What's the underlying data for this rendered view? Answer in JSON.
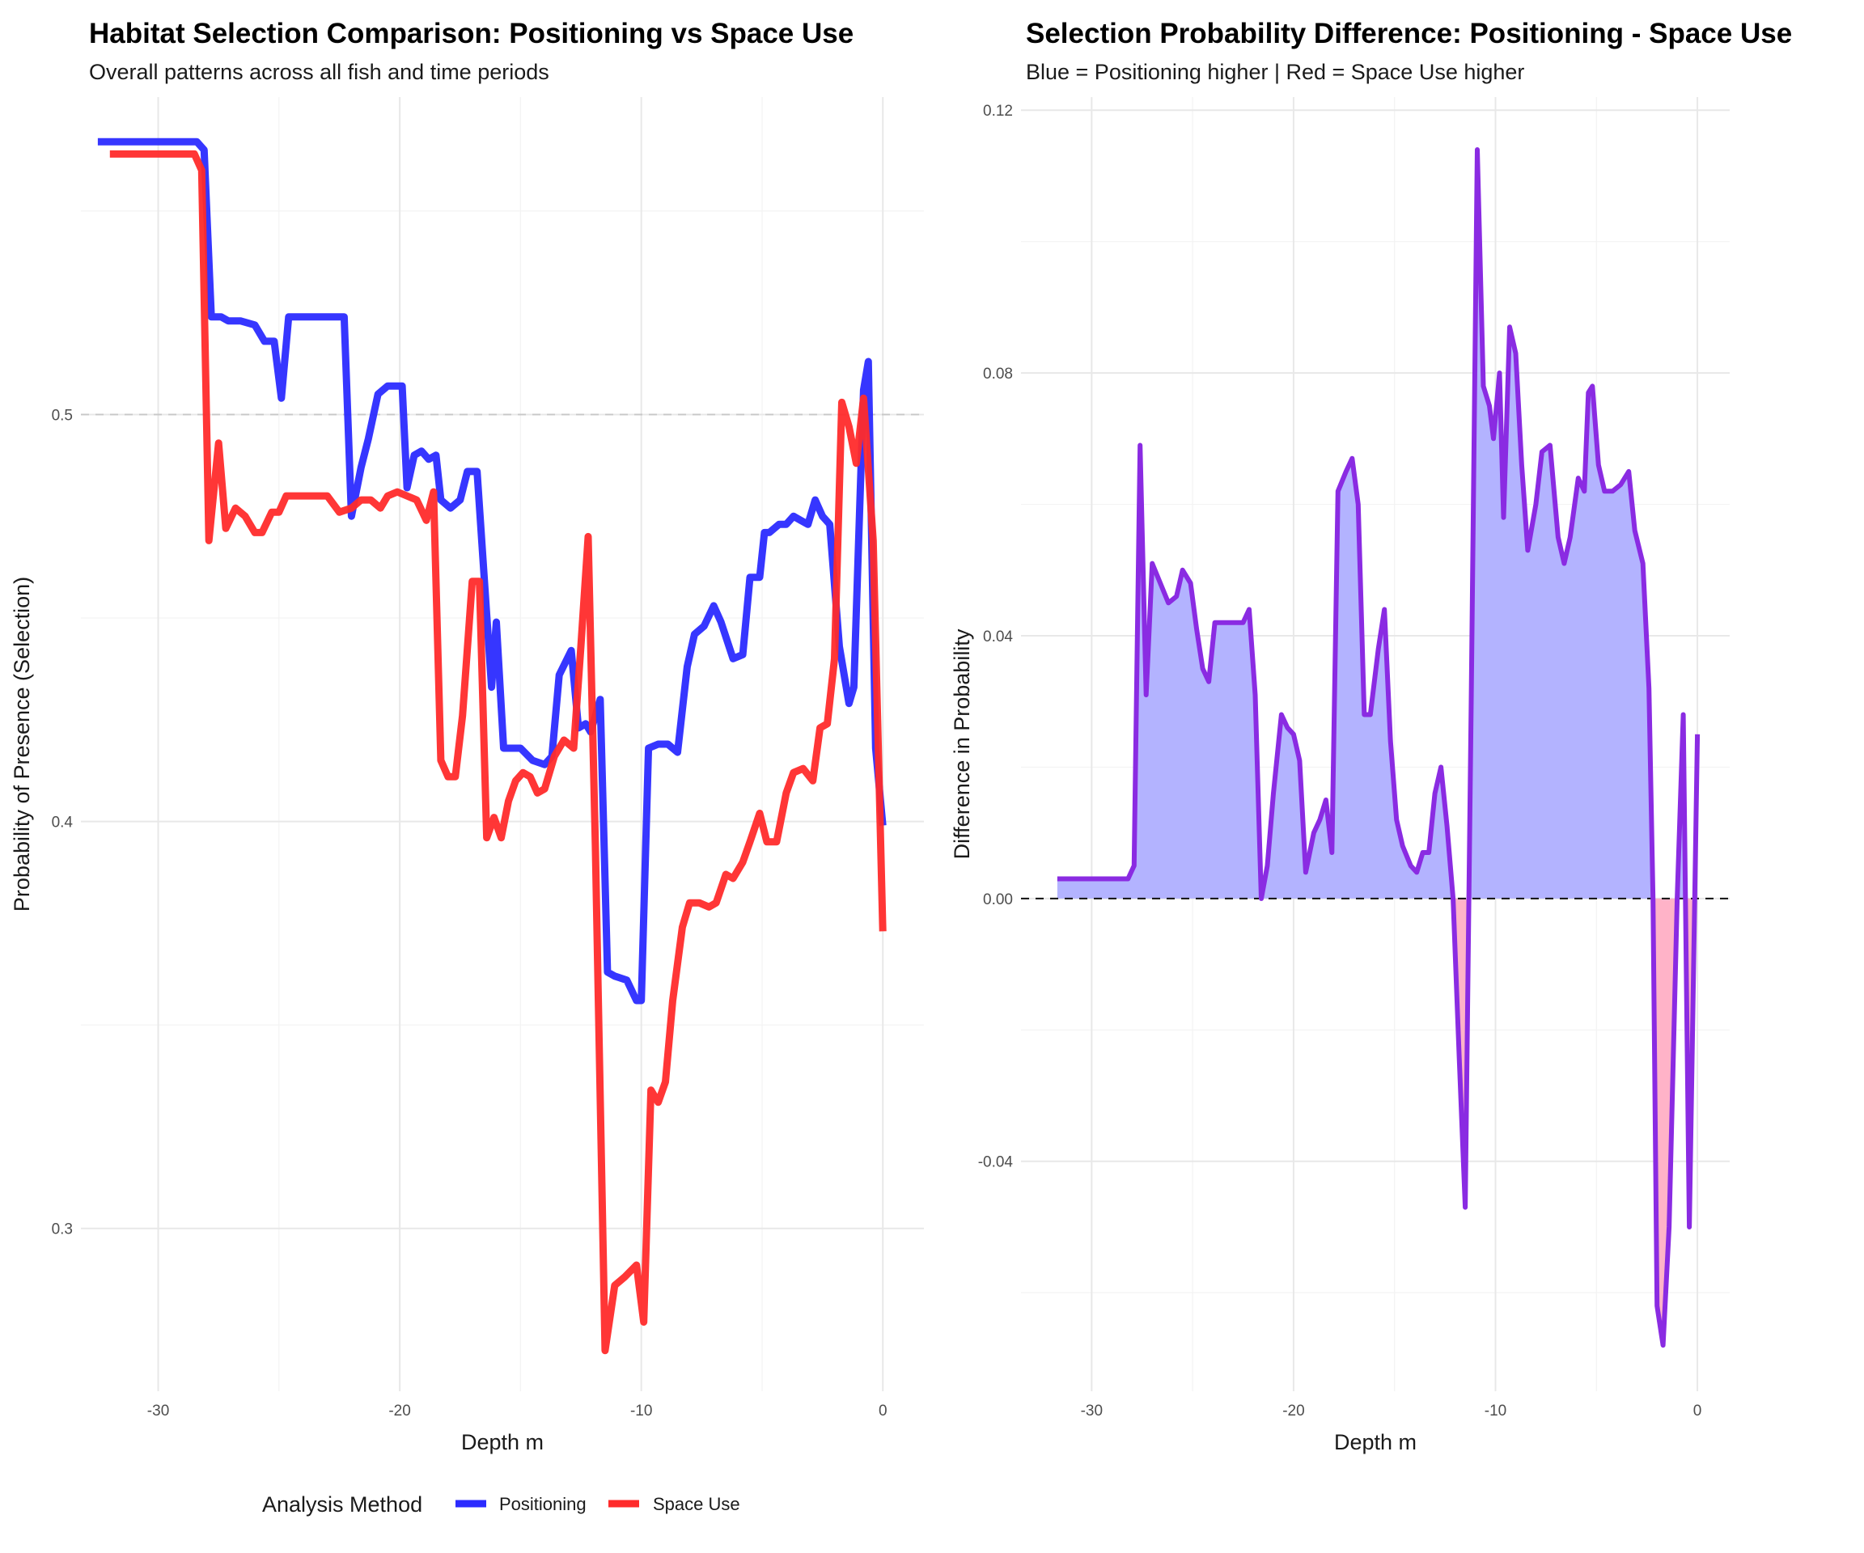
{
  "chart_data": [
    {
      "type": "line",
      "title": "Habitat Selection Comparison: Positioning vs Space Use",
      "subtitle": "Overall patterns across all fish and time periods",
      "xlabel": "Depth m",
      "ylabel": "Probability of Presence (Selection)",
      "xlim": [
        -33.2,
        1.7
      ],
      "ylim": [
        0.26,
        0.578
      ],
      "xticks": [
        -30,
        -20,
        -10,
        0
      ],
      "xtick_labels": [
        "-30",
        "-20",
        "-10",
        "0"
      ],
      "yticks": [
        0.3,
        0.4,
        0.5
      ],
      "ytick_labels": [
        "0.3",
        "0.4",
        "0.5"
      ],
      "reference_line": 0.5,
      "legend": {
        "title": "Analysis Method",
        "position": "bottom",
        "entries": [
          "Positioning",
          "Space Use"
        ]
      },
      "series": [
        {
          "name": "Positioning",
          "color": "#2b2bff",
          "x": [
            -32.5,
            -28.4,
            -28.1,
            -27.8,
            -27.4,
            -27.1,
            -26.6,
            -26.0,
            -25.6,
            -25.2,
            -24.9,
            -24.6,
            -24.3,
            -23.8,
            -23.0,
            -22.3,
            -22.0,
            -21.6,
            -21.3,
            -20.9,
            -20.5,
            -19.9,
            -19.7,
            -19.4,
            -19.1,
            -18.8,
            -18.5,
            -18.3,
            -17.9,
            -17.5,
            -17.2,
            -16.8,
            -16.2,
            -16.0,
            -15.7,
            -15.4,
            -15.0,
            -14.5,
            -14.0,
            -13.7,
            -13.4,
            -12.9,
            -12.6,
            -12.3,
            -12.1,
            -11.7,
            -11.4,
            -11.1,
            -10.6,
            -10.2,
            -10.0,
            -9.7,
            -9.3,
            -8.9,
            -8.5,
            -8.1,
            -7.8,
            -7.4,
            -7.0,
            -6.7,
            -6.2,
            -5.8,
            -5.5,
            -5.1,
            -4.9,
            -4.7,
            -4.3,
            -4.0,
            -3.7,
            -3.4,
            -3.1,
            -2.8,
            -2.5,
            -2.2,
            -1.8,
            -1.4,
            -1.2,
            -0.8,
            -0.6,
            -0.3,
            0.0
          ],
          "values": [
            0.567,
            0.567,
            0.565,
            0.524,
            0.524,
            0.523,
            0.523,
            0.522,
            0.518,
            0.518,
            0.504,
            0.524,
            0.524,
            0.524,
            0.524,
            0.524,
            0.475,
            0.487,
            0.494,
            0.505,
            0.507,
            0.507,
            0.482,
            0.49,
            0.491,
            0.489,
            0.49,
            0.479,
            0.477,
            0.479,
            0.486,
            0.486,
            0.433,
            0.449,
            0.418,
            0.418,
            0.418,
            0.415,
            0.414,
            0.416,
            0.436,
            0.442,
            0.423,
            0.424,
            0.422,
            0.43,
            0.363,
            0.362,
            0.361,
            0.356,
            0.356,
            0.418,
            0.419,
            0.419,
            0.417,
            0.438,
            0.446,
            0.448,
            0.453,
            0.449,
            0.44,
            0.441,
            0.46,
            0.46,
            0.471,
            0.471,
            0.473,
            0.473,
            0.475,
            0.474,
            0.473,
            0.479,
            0.475,
            0.473,
            0.443,
            0.429,
            0.433,
            0.506,
            0.513,
            0.418,
            0.399
          ]
        },
        {
          "name": "Space Use",
          "color": "#ff2b2b",
          "x": [
            -32.0,
            -28.5,
            -28.2,
            -27.9,
            -27.5,
            -27.2,
            -26.8,
            -26.4,
            -26.0,
            -25.7,
            -25.3,
            -25.0,
            -24.7,
            -24.4,
            -23.8,
            -23.0,
            -22.5,
            -22.0,
            -21.6,
            -21.2,
            -20.8,
            -20.5,
            -20.1,
            -19.7,
            -19.3,
            -18.9,
            -18.6,
            -18.3,
            -18.0,
            -17.7,
            -17.4,
            -17.0,
            -16.7,
            -16.4,
            -16.1,
            -15.8,
            -15.5,
            -15.2,
            -14.9,
            -14.6,
            -14.3,
            -14.0,
            -13.6,
            -13.2,
            -12.8,
            -12.5,
            -12.2,
            -11.9,
            -11.5,
            -11.1,
            -10.7,
            -10.2,
            -9.9,
            -9.6,
            -9.3,
            -9.0,
            -8.7,
            -8.3,
            -8.0,
            -7.6,
            -7.2,
            -6.9,
            -6.5,
            -6.2,
            -5.8,
            -5.5,
            -5.1,
            -4.8,
            -4.4,
            -4.0,
            -3.7,
            -3.3,
            -2.9,
            -2.6,
            -2.3,
            -2.0,
            -1.7,
            -1.4,
            -1.1,
            -0.8,
            -0.4,
            0.0
          ],
          "values": [
            0.564,
            0.564,
            0.56,
            0.469,
            0.493,
            0.472,
            0.477,
            0.475,
            0.471,
            0.471,
            0.476,
            0.476,
            0.48,
            0.48,
            0.48,
            0.48,
            0.476,
            0.477,
            0.479,
            0.479,
            0.477,
            0.48,
            0.481,
            0.48,
            0.479,
            0.474,
            0.481,
            0.415,
            0.411,
            0.411,
            0.426,
            0.459,
            0.459,
            0.396,
            0.401,
            0.396,
            0.405,
            0.41,
            0.412,
            0.411,
            0.407,
            0.408,
            0.416,
            0.42,
            0.418,
            0.443,
            0.47,
            0.394,
            0.27,
            0.286,
            0.288,
            0.291,
            0.277,
            0.334,
            0.331,
            0.336,
            0.356,
            0.374,
            0.38,
            0.38,
            0.379,
            0.38,
            0.387,
            0.386,
            0.39,
            0.395,
            0.402,
            0.395,
            0.395,
            0.407,
            0.412,
            0.413,
            0.41,
            0.423,
            0.424,
            0.44,
            0.503,
            0.497,
            0.488,
            0.504,
            0.469,
            0.373
          ]
        }
      ]
    },
    {
      "type": "area",
      "title": "Selection Probability Difference: Positioning - Space Use",
      "subtitle": "Blue = Positioning higher | Red = Space Use higher",
      "xlabel": "Depth m",
      "ylabel": "Difference in Probability",
      "xlim": [
        -33.5,
        1.6
      ],
      "ylim": [
        -0.075,
        0.122
      ],
      "xticks": [
        -30,
        -20,
        -10,
        0
      ],
      "xtick_labels": [
        "-30",
        "-20",
        "-10",
        "0"
      ],
      "yticks": [
        -0.04,
        0.0,
        0.04,
        0.08,
        0.12
      ],
      "ytick_labels": [
        "-0.04",
        "0.00",
        "0.04",
        "0.08",
        "0.12"
      ],
      "reference_line": 0.0,
      "line_color": "#8a2be2",
      "positive_fill": "#b3b3ff",
      "negative_fill": "#ffb3c8",
      "series": [
        {
          "name": "Difference",
          "x": [
            -31.7,
            -28.2,
            -27.9,
            -27.6,
            -27.3,
            -27.0,
            -26.6,
            -26.2,
            -25.8,
            -25.5,
            -25.1,
            -24.8,
            -24.5,
            -24.2,
            -23.9,
            -23.5,
            -22.8,
            -22.5,
            -22.2,
            -21.9,
            -21.6,
            -21.3,
            -21.0,
            -20.6,
            -20.3,
            -20.0,
            -19.7,
            -19.4,
            -19.0,
            -18.7,
            -18.4,
            -18.1,
            -17.8,
            -17.4,
            -17.1,
            -16.8,
            -16.5,
            -16.2,
            -15.8,
            -15.5,
            -15.2,
            -14.9,
            -14.6,
            -14.2,
            -13.9,
            -13.6,
            -13.3,
            -13.0,
            -12.7,
            -12.4,
            -12.1,
            -11.8,
            -11.5,
            -11.2,
            -10.9,
            -10.6,
            -10.3,
            -10.1,
            -9.8,
            -9.6,
            -9.3,
            -9.0,
            -8.7,
            -8.4,
            -8.0,
            -7.7,
            -7.3,
            -6.9,
            -6.6,
            -6.3,
            -5.9,
            -5.6,
            -5.4,
            -5.2,
            -4.9,
            -4.6,
            -4.2,
            -3.8,
            -3.4,
            -3.1,
            -2.7,
            -2.4,
            -2.2,
            -2.0,
            -1.7,
            -1.4,
            -1.0,
            -0.7,
            -0.4,
            0.0
          ],
          "values": [
            0.003,
            0.003,
            0.005,
            0.069,
            0.031,
            0.051,
            0.048,
            0.045,
            0.046,
            0.05,
            0.048,
            0.041,
            0.035,
            0.033,
            0.042,
            0.042,
            0.042,
            0.042,
            0.044,
            0.031,
            0.0,
            0.005,
            0.016,
            0.028,
            0.026,
            0.025,
            0.021,
            0.004,
            0.01,
            0.012,
            0.015,
            0.007,
            0.062,
            0.065,
            0.067,
            0.06,
            0.028,
            0.028,
            0.038,
            0.044,
            0.024,
            0.012,
            0.008,
            0.005,
            0.004,
            0.007,
            0.007,
            0.016,
            0.02,
            0.011,
            0.0,
            -0.024,
            -0.047,
            0.03,
            0.114,
            0.078,
            0.075,
            0.07,
            0.08,
            0.058,
            0.087,
            0.083,
            0.066,
            0.053,
            0.06,
            0.068,
            0.069,
            0.055,
            0.051,
            0.055,
            0.064,
            0.062,
            0.077,
            0.078,
            0.066,
            0.062,
            0.062,
            0.063,
            0.065,
            0.056,
            0.051,
            0.032,
            0.0,
            -0.062,
            -0.068,
            -0.05,
            0.0,
            0.028,
            -0.05,
            0.025
          ]
        }
      ]
    }
  ]
}
